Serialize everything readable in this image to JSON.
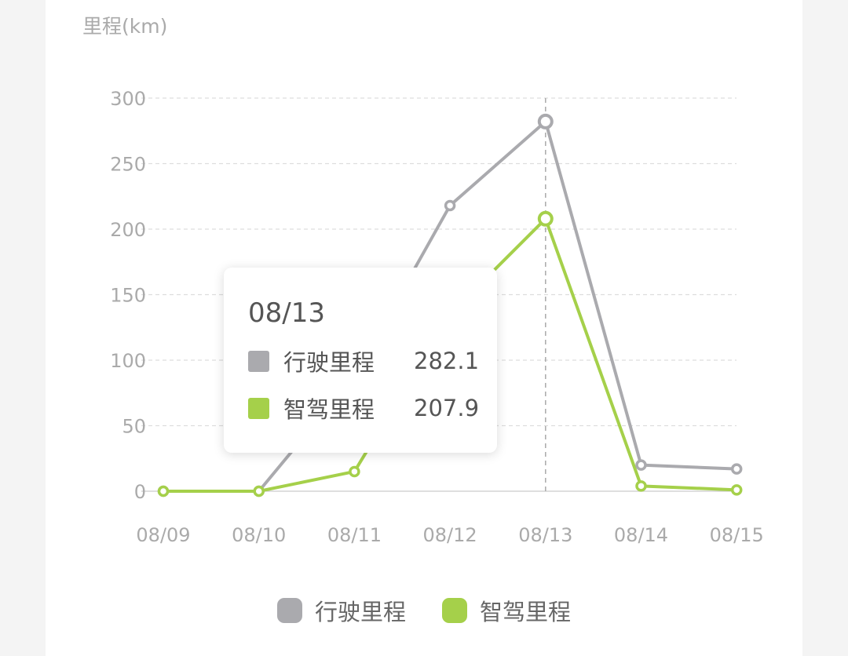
{
  "chart_data": {
    "type": "line",
    "ylabel": "里程(km)",
    "categories": [
      "08/09",
      "08/10",
      "08/11",
      "08/12",
      "08/13",
      "08/14",
      "08/15"
    ],
    "ylim": [
      0,
      300
    ],
    "yticks": [
      0,
      50,
      100,
      150,
      200,
      250,
      300
    ],
    "grid": true,
    "legend": "bottom",
    "series": [
      {
        "name": "行驶里程",
        "color": "#aaaaae",
        "values": [
          0,
          0,
          88,
          218,
          282.1,
          20,
          17
        ]
      },
      {
        "name": "智驾里程",
        "color": "#a5d04a",
        "values": [
          0,
          0,
          15,
          135,
          207.9,
          4,
          1
        ]
      }
    ],
    "tooltip": {
      "title": "08/13",
      "rows": [
        {
          "name": "行驶里程",
          "value": "282.1"
        },
        {
          "name": "智驾里程",
          "value": "207.9"
        }
      ]
    }
  }
}
